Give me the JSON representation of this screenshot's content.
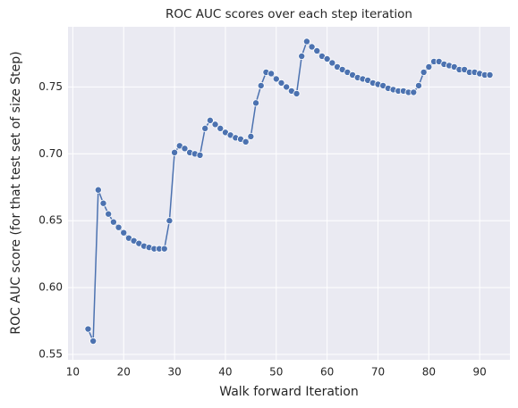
{
  "chart_data": {
    "type": "line",
    "title": "ROC AUC scores over each step iteration",
    "xlabel": "Walk forward Iteration",
    "ylabel": "ROC AUC score (for that test set of size Step)",
    "x": [
      13,
      14,
      15,
      16,
      17,
      18,
      19,
      20,
      21,
      22,
      23,
      24,
      25,
      26,
      27,
      28,
      29,
      30,
      31,
      32,
      33,
      34,
      35,
      36,
      37,
      38,
      39,
      40,
      41,
      42,
      43,
      44,
      45,
      46,
      47,
      48,
      49,
      50,
      51,
      52,
      53,
      54,
      55,
      56,
      57,
      58,
      59,
      60,
      61,
      62,
      63,
      64,
      65,
      66,
      67,
      68,
      69,
      70,
      71,
      72,
      73,
      74,
      75,
      76,
      77,
      78,
      79,
      80,
      81,
      82,
      83,
      84,
      85,
      86,
      87,
      88,
      89,
      90,
      91,
      92
    ],
    "series": [
      {
        "color": "#4c72b0",
        "values": [
          0.569,
          0.56,
          0.673,
          0.663,
          0.655,
          0.649,
          0.645,
          0.641,
          0.637,
          0.635,
          0.633,
          0.631,
          0.63,
          0.629,
          0.629,
          0.629,
          0.65,
          0.701,
          0.706,
          0.704,
          0.701,
          0.7,
          0.699,
          0.719,
          0.725,
          0.722,
          0.719,
          0.716,
          0.714,
          0.712,
          0.711,
          0.709,
          0.713,
          0.738,
          0.751,
          0.761,
          0.76,
          0.756,
          0.753,
          0.75,
          0.747,
          0.745,
          0.773,
          0.784,
          0.78,
          0.777,
          0.773,
          0.771,
          0.768,
          0.765,
          0.763,
          0.761,
          0.759,
          0.757,
          0.756,
          0.755,
          0.753,
          0.752,
          0.751,
          0.749,
          0.748,
          0.747,
          0.747,
          0.746,
          0.746,
          0.751,
          0.761,
          0.765,
          0.769,
          0.769,
          0.767,
          0.766,
          0.765,
          0.763,
          0.763,
          0.761,
          0.761,
          0.76,
          0.759,
          0.759
        ]
      }
    ],
    "xlim": [
      9.05,
      95.95
    ],
    "xticks": [
      10,
      20,
      30,
      40,
      50,
      60,
      70,
      80,
      90
    ],
    "ylim": [
      0.546,
      0.795
    ],
    "yticks": [
      0.55,
      {
        "value": 0.6,
        "label": "0.60"
      },
      0.65,
      {
        "value": 0.7,
        "label": "0.70"
      },
      0.75
    ],
    "grid": true
  }
}
